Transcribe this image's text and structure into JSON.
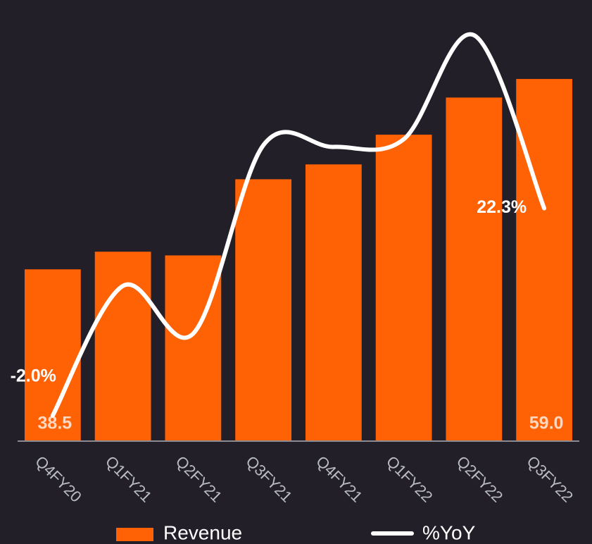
{
  "chart_data": {
    "type": "bar_line",
    "categories": [
      "Q4FY20",
      "Q1FY21",
      "Q2FY21",
      "Q3FY21",
      "Q4FY21",
      "Q1FY22",
      "Q2FY22",
      "Q3FY22"
    ],
    "series": [
      {
        "name": "Revenue",
        "type": "bar",
        "color": "#ff6105",
        "values": [
          38.5,
          40.4,
          40.0,
          48.2,
          49.8,
          53.0,
          57.0,
          59.0
        ],
        "value_labels": [
          "38.5",
          null,
          null,
          null,
          null,
          null,
          null,
          "59.0"
        ]
      },
      {
        "name": "%YoY",
        "type": "line",
        "axis": "y2",
        "color": "#ffffff",
        "values": [
          -2.0,
          13.2,
          7.6,
          29.7,
          29.5,
          30.4,
          42.6,
          22.3
        ],
        "value_labels": [
          "-2.0%",
          null,
          null,
          null,
          null,
          null,
          null,
          "22.3%"
        ]
      }
    ],
    "ylim": [
      20,
      65
    ],
    "y2lim": [
      -5,
      44
    ],
    "legend": "bottom"
  }
}
